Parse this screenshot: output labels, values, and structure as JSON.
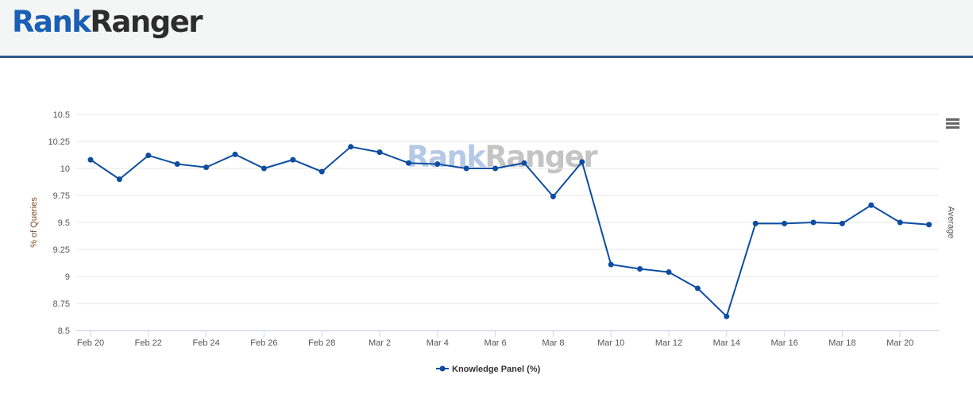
{
  "header": {
    "logo_part1": "Rank",
    "logo_part2": "Ranger"
  },
  "watermark": {
    "part1": "Rank",
    "part2": "Ranger"
  },
  "menu_icon": "hamburger-menu-icon",
  "colors": {
    "series": "#0d4da1",
    "grid": "#e6e6e6"
  },
  "chart_data": {
    "type": "line",
    "ylabel": "% of Queries",
    "ylabel_right": "Average",
    "ylim": [
      8.5,
      10.5
    ],
    "yticks": [
      "8.5",
      "8.75",
      "9",
      "9.25",
      "9.5",
      "9.75",
      "10",
      "10.25",
      "10.5"
    ],
    "x": [
      "Feb 20",
      "Feb 21",
      "Feb 22",
      "Feb 23",
      "Feb 24",
      "Feb 25",
      "Feb 26",
      "Feb 27",
      "Feb 28",
      "Mar 1",
      "Mar 2",
      "Mar 3",
      "Mar 4",
      "Mar 5",
      "Mar 6",
      "Mar 7",
      "Mar 8",
      "Mar 9",
      "Mar 10",
      "Mar 11",
      "Mar 12",
      "Mar 13",
      "Mar 14",
      "Mar 15",
      "Mar 16",
      "Mar 17",
      "Mar 18",
      "Mar 19",
      "Mar 20",
      "Mar 21"
    ],
    "xtick_labels": [
      "Feb 20",
      "Feb 22",
      "Feb 24",
      "Feb 26",
      "Feb 28",
      "Mar 2",
      "Mar 4",
      "Mar 6",
      "Mar 8",
      "Mar 10",
      "Mar 12",
      "Mar 14",
      "Mar 16",
      "Mar 18",
      "Mar 20"
    ],
    "grid": true,
    "legend_position": "bottom",
    "series": [
      {
        "name": "Knowledge Panel (%)",
        "values": [
          10.08,
          9.9,
          10.12,
          10.04,
          10.01,
          10.13,
          10.0,
          10.08,
          9.97,
          10.2,
          10.15,
          10.05,
          10.04,
          10.0,
          10.0,
          10.05,
          9.74,
          10.06,
          9.11,
          9.07,
          9.04,
          8.89,
          8.63,
          9.49,
          9.49,
          9.5,
          9.49,
          9.66,
          9.5,
          9.48
        ]
      }
    ]
  }
}
